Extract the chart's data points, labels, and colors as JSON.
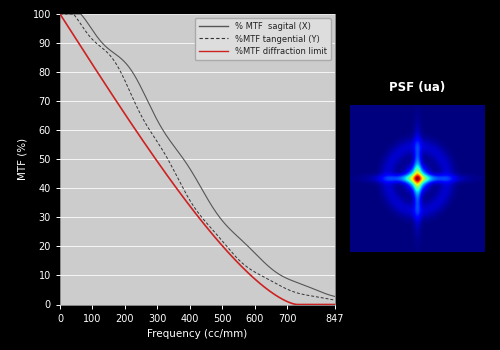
{
  "background_color": "#000000",
  "plot_bg_color": "#cccccc",
  "xlabel": "Frequency (cc/mm)",
  "ylabel": "MTF (%)",
  "xlim": [
    0,
    847
  ],
  "ylim": [
    0,
    100
  ],
  "xticks": [
    0,
    100,
    200,
    300,
    400,
    500,
    600,
    700,
    847
  ],
  "yticks": [
    0,
    10,
    20,
    30,
    40,
    50,
    60,
    70,
    80,
    90,
    100
  ],
  "tick_label_color": "#ffffff",
  "axis_label_color": "#ffffff",
  "legend_labels": [
    "% MTF  sagital (X)",
    "%MTF tangential (Y)",
    "%MTF diffraction limit"
  ],
  "sagital_color": "#555555",
  "tangential_color": "#333333",
  "diffraction_color": "#cc2222",
  "psf_title": "PSF (ua)",
  "psf_title_color": "#ffffff",
  "psf_bg_color": "#0000cc",
  "grid_color": "#ffffff",
  "legend_bg": "#dddddd",
  "legend_edge": "#aaaaaa"
}
